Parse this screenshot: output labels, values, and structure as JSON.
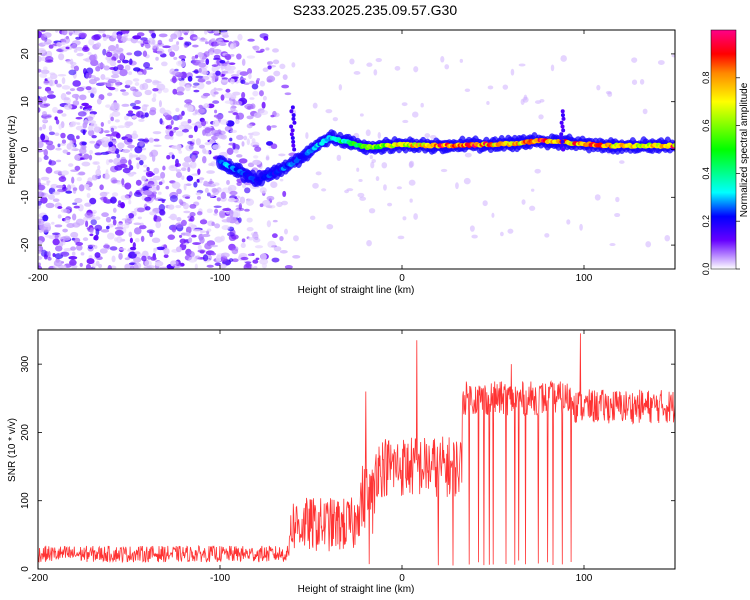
{
  "title": "S233.2025.235.09.57.G30",
  "chart_data": [
    {
      "type": "heatmap",
      "xlabel": "Height of straight line (km)",
      "ylabel": "Frequency (Hz)",
      "xlim": [
        -200,
        150
      ],
      "ylim": [
        -25,
        25
      ],
      "xticks": [
        -200,
        -100,
        0,
        100
      ],
      "yticks": [
        -20,
        -10,
        0,
        10,
        20
      ],
      "colorbar": {
        "label": "Normalized spectral amplitude",
        "range": [
          0,
          1
        ],
        "ticks": [
          0.0,
          0.2,
          0.4,
          0.6,
          0.8
        ],
        "tick_labels": [
          "0.0",
          "0.2",
          "0.4",
          "0.6",
          "0.8"
        ],
        "stops": [
          {
            "v": 0.0,
            "color": "#ffffff"
          },
          {
            "v": 0.12,
            "color": "#6600ff"
          },
          {
            "v": 0.22,
            "color": "#0000ff"
          },
          {
            "v": 0.32,
            "color": "#00ffff"
          },
          {
            "v": 0.5,
            "color": "#00ff00"
          },
          {
            "v": 0.7,
            "color": "#ffff00"
          },
          {
            "v": 0.82,
            "color": "#ff8800"
          },
          {
            "v": 0.9,
            "color": "#ff0000"
          },
          {
            "v": 1.0,
            "color": "#ff0088"
          }
        ]
      },
      "noise_region": {
        "x": [
          -200,
          -70
        ],
        "freq": [
          -25,
          25
        ]
      },
      "signal_trace": [
        {
          "x": -100,
          "freq": -2.5,
          "level": 0.3
        },
        {
          "x": -80,
          "freq": -6.5,
          "level": 0.22
        },
        {
          "x": -65,
          "freq": -4,
          "level": 0.25
        },
        {
          "x": -55,
          "freq": -1.5,
          "level": 0.25
        },
        {
          "x": -40,
          "freq": 2.5,
          "level": 0.35
        },
        {
          "x": -20,
          "freq": 0.5,
          "level": 0.55
        },
        {
          "x": 0,
          "freq": 1.0,
          "level": 0.7
        },
        {
          "x": 20,
          "freq": 0.8,
          "level": 0.85
        },
        {
          "x": 40,
          "freq": 1.0,
          "level": 0.9
        },
        {
          "x": 60,
          "freq": 1.2,
          "level": 0.75
        },
        {
          "x": 75,
          "freq": 1.8,
          "level": 0.9
        },
        {
          "x": 90,
          "freq": 1.5,
          "level": 0.8
        },
        {
          "x": 110,
          "freq": 0.8,
          "level": 0.85
        },
        {
          "x": 130,
          "freq": 0.8,
          "level": 0.7
        },
        {
          "x": 150,
          "freq": 0.8,
          "level": 0.85
        }
      ],
      "trace_spikes": [
        {
          "x": -60,
          "freq_top": 9
        },
        {
          "x": 88,
          "freq_top": 8
        }
      ]
    },
    {
      "type": "line",
      "xlabel": "Height of straight line (km)",
      "ylabel": "SNR (10 * v/v)",
      "xlim": [
        -200,
        150
      ],
      "ylim": [
        0,
        350
      ],
      "xticks": [
        -200,
        -100,
        0,
        100
      ],
      "yticks": [
        0,
        100,
        200,
        300
      ],
      "color": "#ff3333",
      "segments": [
        {
          "x": [
            -200,
            -62
          ],
          "mean": 22,
          "spread": 12
        },
        {
          "x": [
            -62,
            -25
          ],
          "mean": 65,
          "spread": 40
        },
        {
          "x": [
            -25,
            -15
          ],
          "mean": 100,
          "spread": 55
        },
        {
          "x": [
            -15,
            33
          ],
          "mean": 150,
          "spread": 45
        },
        {
          "x": [
            33,
            95
          ],
          "mean": 250,
          "spread": 25
        },
        {
          "x": [
            95,
            150
          ],
          "mean": 238,
          "spread": 25
        }
      ],
      "dropouts_x": [
        -18,
        20,
        28,
        37,
        42,
        45,
        48,
        50,
        57,
        62,
        64,
        68,
        75,
        80,
        83,
        88,
        93
      ],
      "peaks": [
        {
          "x": -20,
          "y": 260
        },
        {
          "x": 8,
          "y": 335
        },
        {
          "x": 98,
          "y": 345
        },
        {
          "x": 60,
          "y": 300
        }
      ]
    }
  ]
}
